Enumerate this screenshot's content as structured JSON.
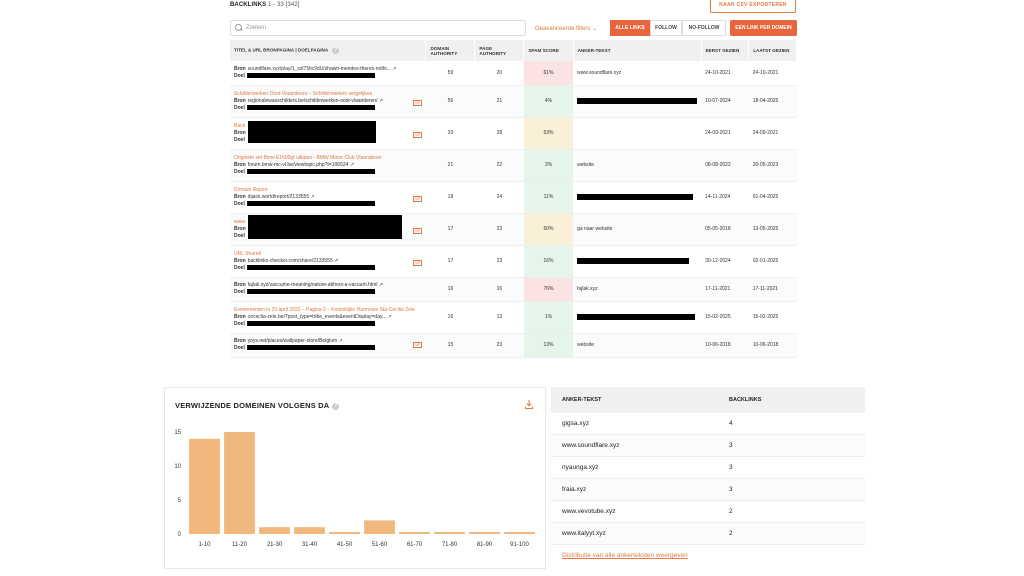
{
  "header": {
    "title": "BACKLINKS",
    "count": "1 - 33 [342]",
    "csv_button": "NAAR CSV EXPORTEREN"
  },
  "toolbar": {
    "search_placeholder": "Zoeken",
    "advanced_filters": "Geavanceerde filters",
    "seg_all": "ALLE LINKS",
    "seg_follow": "FOLLOW",
    "seg_nofollow": "NO-FOLLOW",
    "domain_button": "EEN LINK PER DOMEIN"
  },
  "columns": {
    "title": "TITEL & URL BRONPAGINA | DOELPAGINA",
    "da": "DOMAIN AUTHORITY",
    "pa": "PAGE AUTHORITY",
    "spam": "SPAM SCORE",
    "anchor": "ANKER-TEKST",
    "first": "EERST GEZIEN",
    "last": "LAATST GEZIEN"
  },
  "labels": {
    "bron": "Bron",
    "doel": "Doel",
    "nf": "NF"
  },
  "rows": [
    {
      "title": "",
      "bron": "soundflare.xyz/play/1_szl75tic9dU/shawn-mendes-theres-nothi...",
      "nf": false,
      "da": "59",
      "pa": "20",
      "spam": "61%",
      "spam_color": "#fbe3e3",
      "anchor": "www.soundflare.xyz",
      "first": "24-10-2021",
      "last": "24-10-2021"
    },
    {
      "title": "Schilderwerken Oost-Vlaanderen – Schilderwerken vergelijken",
      "bron": "regionalewaxschilders.be/schilderwerken-oost-vlaanderen/",
      "nf": true,
      "da": "56",
      "pa": "21",
      "spam": "4%",
      "spam_color": "#e6f5ea",
      "anchor": "",
      "first": "10-07-2024",
      "last": "18-04-2025"
    },
    {
      "title": "Back",
      "bron": "",
      "nf": true,
      "da": "33",
      "pa": "28",
      "spam": "53%",
      "spam_color": "#faf0d7",
      "anchor": "",
      "first": "24-09-2021",
      "last": "24-09-2021"
    },
    {
      "title": "Originele set Bmw E1600gt uitlaten - BMW Motor Club Vlaanderen",
      "bron": "forum.bmw-mc-vl.be/viewtopic.php?t=106524",
      "nf": false,
      "da": "21",
      "pa": "22",
      "spam": "3%",
      "spam_color": "#e6f5ea",
      "anchor": "website",
      "first": "08-08-2022",
      "last": "20-05-2023"
    },
    {
      "title": "Domain Report",
      "bron": "dijack.world/report/2133555",
      "nf": true,
      "da": "18",
      "pa": "24",
      "spam": "11%",
      "spam_color": "#e6f5ea",
      "anchor": "",
      "first": "14-11-2024",
      "last": "01-04-2025"
    },
    {
      "title": "www.",
      "bron": "",
      "nf": true,
      "da": "17",
      "pa": "23",
      "spam": "50%",
      "spam_color": "#faf0d7",
      "anchor": "ga naar website",
      "first": "05-05-2018",
      "last": "13-05-2025"
    },
    {
      "title": "URL Shared",
      "bron": "backlinks-checker.com/share/2133555",
      "nf": true,
      "da": "17",
      "pa": "23",
      "spam": "16%",
      "spam_color": "#e6f5ea",
      "anchor": "",
      "first": "30-12-2024",
      "last": "02-01-2025"
    },
    {
      "title": "",
      "bron": "fajlak.xyz/vaccume-meaning/nature-abhors-a-vacuum.html",
      "nf": false,
      "da": "16",
      "pa": "16",
      "spam": "76%",
      "spam_color": "#fbe3e3",
      "anchor": "fajlak.xyz",
      "first": "17-11-2021",
      "last": "17-11-2021"
    },
    {
      "title": "Evenementen in 29 april 2022 – Pagina 2 – Koninklijke Harmonie Sta-Cecilia Zele",
      "bron": "cececlia-zele.be/?post_type=tribe_events&eventDisplay=day...",
      "nf": false,
      "da": "16",
      "pa": "13",
      "spam": "1%",
      "spam_color": "#e6f5ea",
      "anchor": "",
      "first": "15-02-2025",
      "last": "15-02-2025"
    },
    {
      "title": "",
      "bron": "yoys.net/places/wallpaper-store/Belgium",
      "nf": true,
      "da": "15",
      "pa": "23",
      "spam": "13%",
      "spam_color": "#e6f5ea",
      "anchor": "website",
      "first": "10-06-2018",
      "last": "10-06-2018"
    }
  ],
  "chart": {
    "title": "VERWIJZENDE DOMEINEN VOLGENS DA"
  },
  "chart_data": {
    "type": "bar",
    "title": "VERWIJZENDE DOMEINEN VOLGENS DA",
    "categories": [
      "1-10",
      "11-20",
      "21-30",
      "31-40",
      "41-50",
      "51-60",
      "61-70",
      "71-80",
      "81-90",
      "91-100"
    ],
    "values": [
      14,
      15,
      1,
      1,
      0.3,
      2,
      0.3,
      0.3,
      0.3,
      0.3
    ],
    "yticks": [
      "0",
      "5",
      "10",
      "15"
    ],
    "ylim": [
      0,
      15
    ],
    "grid": false,
    "bar_color": "#f0b87c"
  },
  "anchor_table": {
    "col1": "ANKER-TEKST",
    "col2": "BACKLINKS",
    "rows": [
      {
        "text": "gigsa.xyz",
        "count": "4"
      },
      {
        "text": "www.soundflare.xyz",
        "count": "3"
      },
      {
        "text": "nyaunga.xyz",
        "count": "3"
      },
      {
        "text": "fraia.xyz",
        "count": "3"
      },
      {
        "text": "www.vevotube.xyz",
        "count": "2"
      },
      {
        "text": "www.italyyt.xyz",
        "count": "2"
      }
    ],
    "link": "Distributie van alle ankerteksten weergeven"
  }
}
